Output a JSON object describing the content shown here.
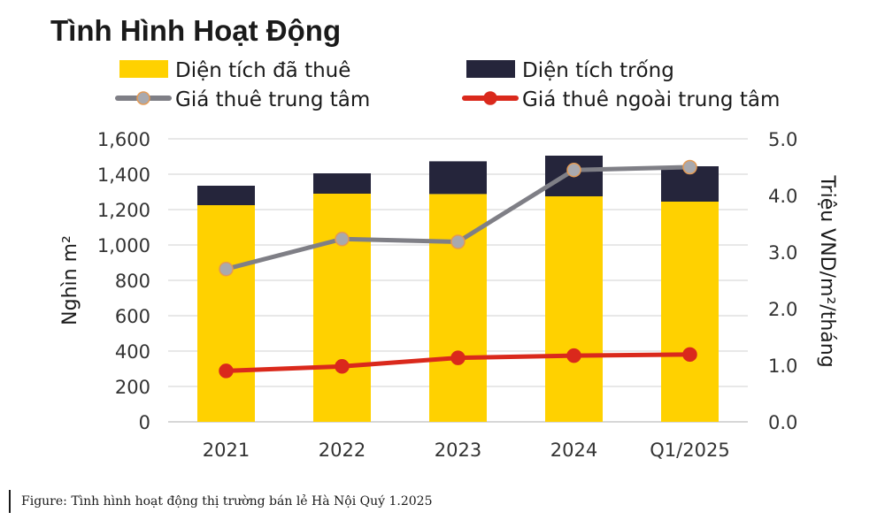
{
  "chart_data": {
    "type": "bar",
    "title": "Tình Hình Hoạt Động",
    "categories": [
      "2021",
      "2022",
      "2023",
      "2024",
      "Q1/2025"
    ],
    "stacked_bars": [
      {
        "name": "Diện tích đã thuê",
        "color": "#FFD100",
        "values": [
          1225,
          1290,
          1288,
          1275,
          1245
        ]
      },
      {
        "name": "Diện tích trống",
        "color": "#25253B",
        "values": [
          110,
          115,
          185,
          230,
          200
        ]
      }
    ],
    "lines": [
      {
        "name": "Giá thuê trung tâm",
        "color": "#7F7F86",
        "marker_fill": "#A9A9AE",
        "marker_edge": "#E39A55",
        "axis": "right",
        "values": [
          2.7,
          3.23,
          3.18,
          4.45,
          4.5
        ]
      },
      {
        "name": "Giá thuê ngoài trung tâm",
        "color": "#DA291C",
        "marker_fill": "#DA291C",
        "marker_edge": "#DA291C",
        "axis": "right",
        "values": [
          0.9,
          0.98,
          1.13,
          1.17,
          1.19
        ]
      }
    ],
    "ylabel": "Nghìn m²",
    "y2label": "Triệu VND/m²/tháng",
    "ylim": [
      0,
      1600
    ],
    "y2lim": [
      0,
      5
    ],
    "yticks": [
      "0",
      "200",
      "400",
      "600",
      "800",
      "1,000",
      "1,200",
      "1,400",
      "1,600"
    ],
    "y2ticks": [
      "0.0",
      "1.0",
      "2.0",
      "3.0",
      "4.0",
      "5.0"
    ],
    "grid": true,
    "legend_placement": "top"
  },
  "caption": "Figure: Tình hình hoạt động thị trường bán lẻ Hà Nội Quý 1.2025"
}
